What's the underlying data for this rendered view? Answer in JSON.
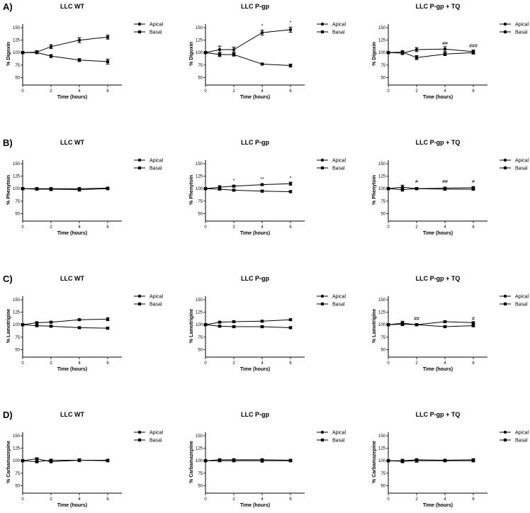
{
  "panels": [
    {
      "letter": "A)"
    },
    {
      "letter": "B)"
    },
    {
      "letter": "C)"
    },
    {
      "letter": "D)"
    }
  ],
  "chart_data": [
    {
      "type": "line",
      "panel": "A)",
      "title": "LLC WT",
      "xlabel": "Time (hours)",
      "ylabel": "% Digoxin",
      "xlim": [
        0,
        7
      ],
      "ylim": [
        35,
        160
      ],
      "xticks": [
        0,
        2,
        4,
        6
      ],
      "yticks": [
        50,
        75,
        100,
        125,
        150
      ],
      "x": [
        0,
        1,
        2,
        4,
        6
      ],
      "series": [
        {
          "name": "Apical",
          "marker": "circle",
          "values": [
            100,
            101,
            112,
            125,
            131
          ],
          "err": [
            2,
            3,
            4,
            5,
            4
          ]
        },
        {
          "name": "Basal",
          "marker": "square",
          "values": [
            100,
            100,
            93,
            85,
            82
          ],
          "err": [
            2,
            2,
            3,
            3,
            5
          ]
        }
      ],
      "annotations": [],
      "legend": "right"
    },
    {
      "type": "line",
      "panel": "A)",
      "title": "LLC P-gp",
      "xlabel": "Time (hours)",
      "ylabel": "% Digoxin",
      "xlim": [
        0,
        7
      ],
      "ylim": [
        35,
        160
      ],
      "xticks": [
        0,
        2,
        4,
        6
      ],
      "yticks": [
        50,
        75,
        100,
        125,
        150
      ],
      "x": [
        0,
        1,
        2,
        4,
        6
      ],
      "series": [
        {
          "name": "Apical",
          "marker": "circle",
          "values": [
            100,
            106,
            106,
            140,
            146
          ],
          "err": [
            2,
            7,
            5,
            5,
            5
          ]
        },
        {
          "name": "Basal",
          "marker": "square",
          "values": [
            100,
            96,
            96,
            77,
            74
          ],
          "err": [
            2,
            4,
            3,
            2,
            3
          ]
        }
      ],
      "annotations": [
        {
          "x": 4,
          "y": 151,
          "text": "*"
        },
        {
          "x": 6,
          "y": 157,
          "text": "*"
        }
      ],
      "legend": "right"
    },
    {
      "type": "line",
      "panel": "A)",
      "title": "LLC P-gp + TQ",
      "xlabel": "Time (hours)",
      "ylabel": "% Digoxin",
      "xlim": [
        0,
        7
      ],
      "ylim": [
        35,
        160
      ],
      "xticks": [
        0,
        2,
        4,
        6
      ],
      "yticks": [
        50,
        75,
        100,
        125,
        150
      ],
      "x": [
        0,
        1,
        2,
        4,
        6
      ],
      "series": [
        {
          "name": "Apical",
          "marker": "circle",
          "values": [
            100,
            99,
            106,
            107,
            102
          ],
          "err": [
            2,
            3,
            4,
            5,
            3
          ]
        },
        {
          "name": "Basal",
          "marker": "square",
          "values": [
            100,
            101,
            90,
            97,
            100
          ],
          "err": [
            2,
            3,
            4,
            3,
            3
          ]
        }
      ],
      "annotations": [
        {
          "x": 4,
          "y": 115,
          "text": "##"
        },
        {
          "x": 6,
          "y": 110,
          "text": "###"
        }
      ],
      "legend": "right"
    },
    {
      "type": "line",
      "panel": "B)",
      "title": "LLC WT",
      "xlabel": "Time (hours)",
      "ylabel": "% Phenytoin",
      "xlim": [
        0,
        7
      ],
      "ylim": [
        35,
        160
      ],
      "xticks": [
        0,
        2,
        4,
        6
      ],
      "yticks": [
        50,
        75,
        100,
        125,
        150
      ],
      "x": [
        0,
        1,
        2,
        4,
        6
      ],
      "series": [
        {
          "name": "Apical",
          "marker": "circle",
          "values": [
            100,
            100,
            100,
            100,
            101
          ],
          "err": [
            2,
            2,
            2,
            2,
            2
          ]
        },
        {
          "name": "Basal",
          "marker": "square",
          "values": [
            100,
            99,
            99,
            98,
            100
          ],
          "err": [
            2,
            2,
            3,
            3,
            2
          ]
        }
      ],
      "annotations": [],
      "legend": "right"
    },
    {
      "type": "line",
      "panel": "B)",
      "title": "LLC P-gp",
      "xlabel": "Time (hours)",
      "ylabel": "% Phenytoin",
      "xlim": [
        0,
        7
      ],
      "ylim": [
        35,
        160
      ],
      "xticks": [
        0,
        2,
        4,
        6
      ],
      "yticks": [
        50,
        75,
        100,
        125,
        150
      ],
      "x": [
        0,
        1,
        2,
        4,
        6
      ],
      "series": [
        {
          "name": "Apical",
          "marker": "circle",
          "values": [
            100,
            103,
            105,
            108,
            110
          ],
          "err": [
            2,
            3,
            2,
            2,
            3
          ]
        },
        {
          "name": "Basal",
          "marker": "square",
          "values": [
            100,
            99,
            97,
            95,
            94
          ],
          "err": [
            2,
            2,
            2,
            2,
            2
          ]
        }
      ],
      "annotations": [
        {
          "x": 2,
          "y": 113,
          "text": "*"
        },
        {
          "x": 4,
          "y": 116,
          "text": "**"
        },
        {
          "x": 6,
          "y": 118,
          "text": "*"
        }
      ],
      "legend": "right"
    },
    {
      "type": "line",
      "panel": "B)",
      "title": "LLC P-gp + TQ",
      "xlabel": "Time (hours)",
      "ylabel": "% Phenytoin",
      "xlim": [
        0,
        7
      ],
      "ylim": [
        35,
        160
      ],
      "xticks": [
        0,
        2,
        4,
        6
      ],
      "yticks": [
        50,
        75,
        100,
        125,
        150
      ],
      "x": [
        0,
        1,
        2,
        4,
        6
      ],
      "series": [
        {
          "name": "Apical",
          "marker": "circle",
          "values": [
            100,
            103,
            100,
            101,
            102
          ],
          "err": [
            2,
            4,
            2,
            2,
            2
          ]
        },
        {
          "name": "Basal",
          "marker": "square",
          "values": [
            100,
            98,
            100,
            99,
            99
          ],
          "err": [
            2,
            3,
            2,
            2,
            2
          ]
        }
      ],
      "annotations": [
        {
          "x": 2,
          "y": 111,
          "text": "#"
        },
        {
          "x": 4,
          "y": 111,
          "text": "##"
        },
        {
          "x": 6,
          "y": 111,
          "text": "#"
        }
      ],
      "legend": "right"
    },
    {
      "type": "line",
      "panel": "C)",
      "title": "LLC WT",
      "xlabel": "Time (hours)",
      "ylabel": "% Lamotrigine",
      "xlim": [
        0,
        7
      ],
      "ylim": [
        35,
        160
      ],
      "xticks": [
        0,
        2,
        4,
        6
      ],
      "yticks": [
        50,
        75,
        100,
        125,
        150
      ],
      "x": [
        0,
        1,
        2,
        4,
        6
      ],
      "series": [
        {
          "name": "Apical",
          "marker": "circle",
          "values": [
            100,
            104,
            105,
            110,
            111
          ],
          "err": [
            2,
            2,
            2,
            2,
            3
          ]
        },
        {
          "name": "Basal",
          "marker": "square",
          "values": [
            100,
            98,
            97,
            94,
            93
          ],
          "err": [
            2,
            2,
            2,
            2,
            2
          ]
        }
      ],
      "annotations": [],
      "legend": "right"
    },
    {
      "type": "line",
      "panel": "C)",
      "title": "LLC P-gp",
      "xlabel": "Time (hours)",
      "ylabel": "% Lamotrigine",
      "xlim": [
        0,
        7
      ],
      "ylim": [
        35,
        160
      ],
      "xticks": [
        0,
        2,
        4,
        6
      ],
      "yticks": [
        50,
        75,
        100,
        125,
        150
      ],
      "x": [
        0,
        1,
        2,
        4,
        6
      ],
      "series": [
        {
          "name": "Apical",
          "marker": "circle",
          "values": [
            100,
            105,
            106,
            107,
            110
          ],
          "err": [
            2,
            2,
            2,
            2,
            2
          ]
        },
        {
          "name": "Basal",
          "marker": "square",
          "values": [
            100,
            97,
            96,
            96,
            94
          ],
          "err": [
            2,
            2,
            2,
            2,
            2
          ]
        }
      ],
      "annotations": [],
      "legend": "right"
    },
    {
      "type": "line",
      "panel": "C)",
      "title": "LLC P-gp + TQ",
      "xlabel": "Time (hours)",
      "ylabel": "% Lamotrigine",
      "xlim": [
        0,
        7
      ],
      "ylim": [
        35,
        160
      ],
      "xticks": [
        0,
        2,
        4,
        6
      ],
      "yticks": [
        50,
        75,
        100,
        125,
        150
      ],
      "x": [
        0,
        1,
        2,
        4,
        6
      ],
      "series": [
        {
          "name": "Apical",
          "marker": "circle",
          "values": [
            100,
            101,
            100,
            106,
            104
          ],
          "err": [
            2,
            3,
            2,
            2,
            2
          ]
        },
        {
          "name": "Basal",
          "marker": "square",
          "values": [
            100,
            103,
            100,
            96,
            98
          ],
          "err": [
            2,
            4,
            2,
            2,
            2
          ]
        }
      ],
      "annotations": [
        {
          "x": 2,
          "y": 109,
          "text": "##"
        },
        {
          "x": 6,
          "y": 109,
          "text": "#"
        }
      ],
      "legend": "right"
    },
    {
      "type": "line",
      "panel": "D)",
      "title": "LLC WT",
      "xlabel": "Time (hours)",
      "ylabel": "% Carbamazepine",
      "xlim": [
        0,
        7
      ],
      "ylim": [
        35,
        160
      ],
      "xticks": [
        0,
        2,
        4,
        6
      ],
      "yticks": [
        50,
        75,
        100,
        125,
        150
      ],
      "x": [
        0,
        1,
        2,
        4,
        6
      ],
      "series": [
        {
          "name": "Apical",
          "marker": "circle",
          "values": [
            100,
            104,
            98,
            101,
            101
          ],
          "err": [
            2,
            2,
            2,
            2,
            2
          ]
        },
        {
          "name": "Basal",
          "marker": "square",
          "values": [
            100,
            98,
            101,
            101,
            100
          ],
          "err": [
            2,
            2,
            2,
            3,
            2
          ]
        }
      ],
      "annotations": [],
      "legend": "right"
    },
    {
      "type": "line",
      "panel": "D)",
      "title": "LLC P-gp",
      "xlabel": "Time (hours)",
      "ylabel": "% Carbamazepine",
      "xlim": [
        0,
        7
      ],
      "ylim": [
        35,
        160
      ],
      "xticks": [
        0,
        2,
        4,
        6
      ],
      "yticks": [
        50,
        75,
        100,
        125,
        150
      ],
      "x": [
        0,
        1,
        2,
        4,
        6
      ],
      "series": [
        {
          "name": "Apical",
          "marker": "circle",
          "values": [
            100,
            102,
            102,
            102,
            101
          ],
          "err": [
            2,
            2,
            2,
            2,
            2
          ]
        },
        {
          "name": "Basal",
          "marker": "square",
          "values": [
            100,
            100,
            100,
            100,
            100
          ],
          "err": [
            2,
            2,
            2,
            3,
            2
          ]
        }
      ],
      "annotations": [],
      "legend": "right"
    },
    {
      "type": "line",
      "panel": "D)",
      "title": "LLC P-gp + TQ",
      "xlabel": "Time (hours)",
      "ylabel": "% Carbamazepine",
      "xlim": [
        0,
        7
      ],
      "ylim": [
        35,
        160
      ],
      "xticks": [
        0,
        2,
        4,
        6
      ],
      "yticks": [
        50,
        75,
        100,
        125,
        150
      ],
      "x": [
        0,
        1,
        2,
        4,
        6
      ],
      "series": [
        {
          "name": "Apical",
          "marker": "circle",
          "values": [
            100,
            100,
            102,
            101,
            102
          ],
          "err": [
            2,
            3,
            2,
            2,
            2
          ]
        },
        {
          "name": "Basal",
          "marker": "square",
          "values": [
            100,
            99,
            100,
            100,
            100
          ],
          "err": [
            2,
            3,
            3,
            2,
            2
          ]
        }
      ],
      "annotations": [],
      "legend": "right"
    }
  ]
}
